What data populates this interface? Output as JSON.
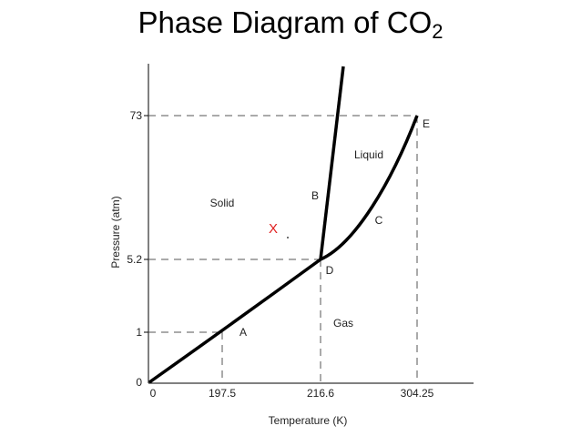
{
  "title": {
    "main": "Phase Diagram of CO",
    "subscript": "2"
  },
  "axes": {
    "x_label": "Temperature (K)",
    "y_label": "Pressure (atm)",
    "x_ticks": [
      "0",
      "197.5",
      "216.6",
      "304.25"
    ],
    "y_ticks": [
      "0",
      "1",
      "5.2",
      "73"
    ]
  },
  "regions": {
    "solid": "Solid",
    "liquid": "Liquid",
    "gas": "Gas"
  },
  "curve_labels": {
    "a": "A",
    "b": "B",
    "c": "C",
    "d": "D",
    "e": "E"
  },
  "marker": {
    "text": "X",
    "color": "#e02020"
  }
}
